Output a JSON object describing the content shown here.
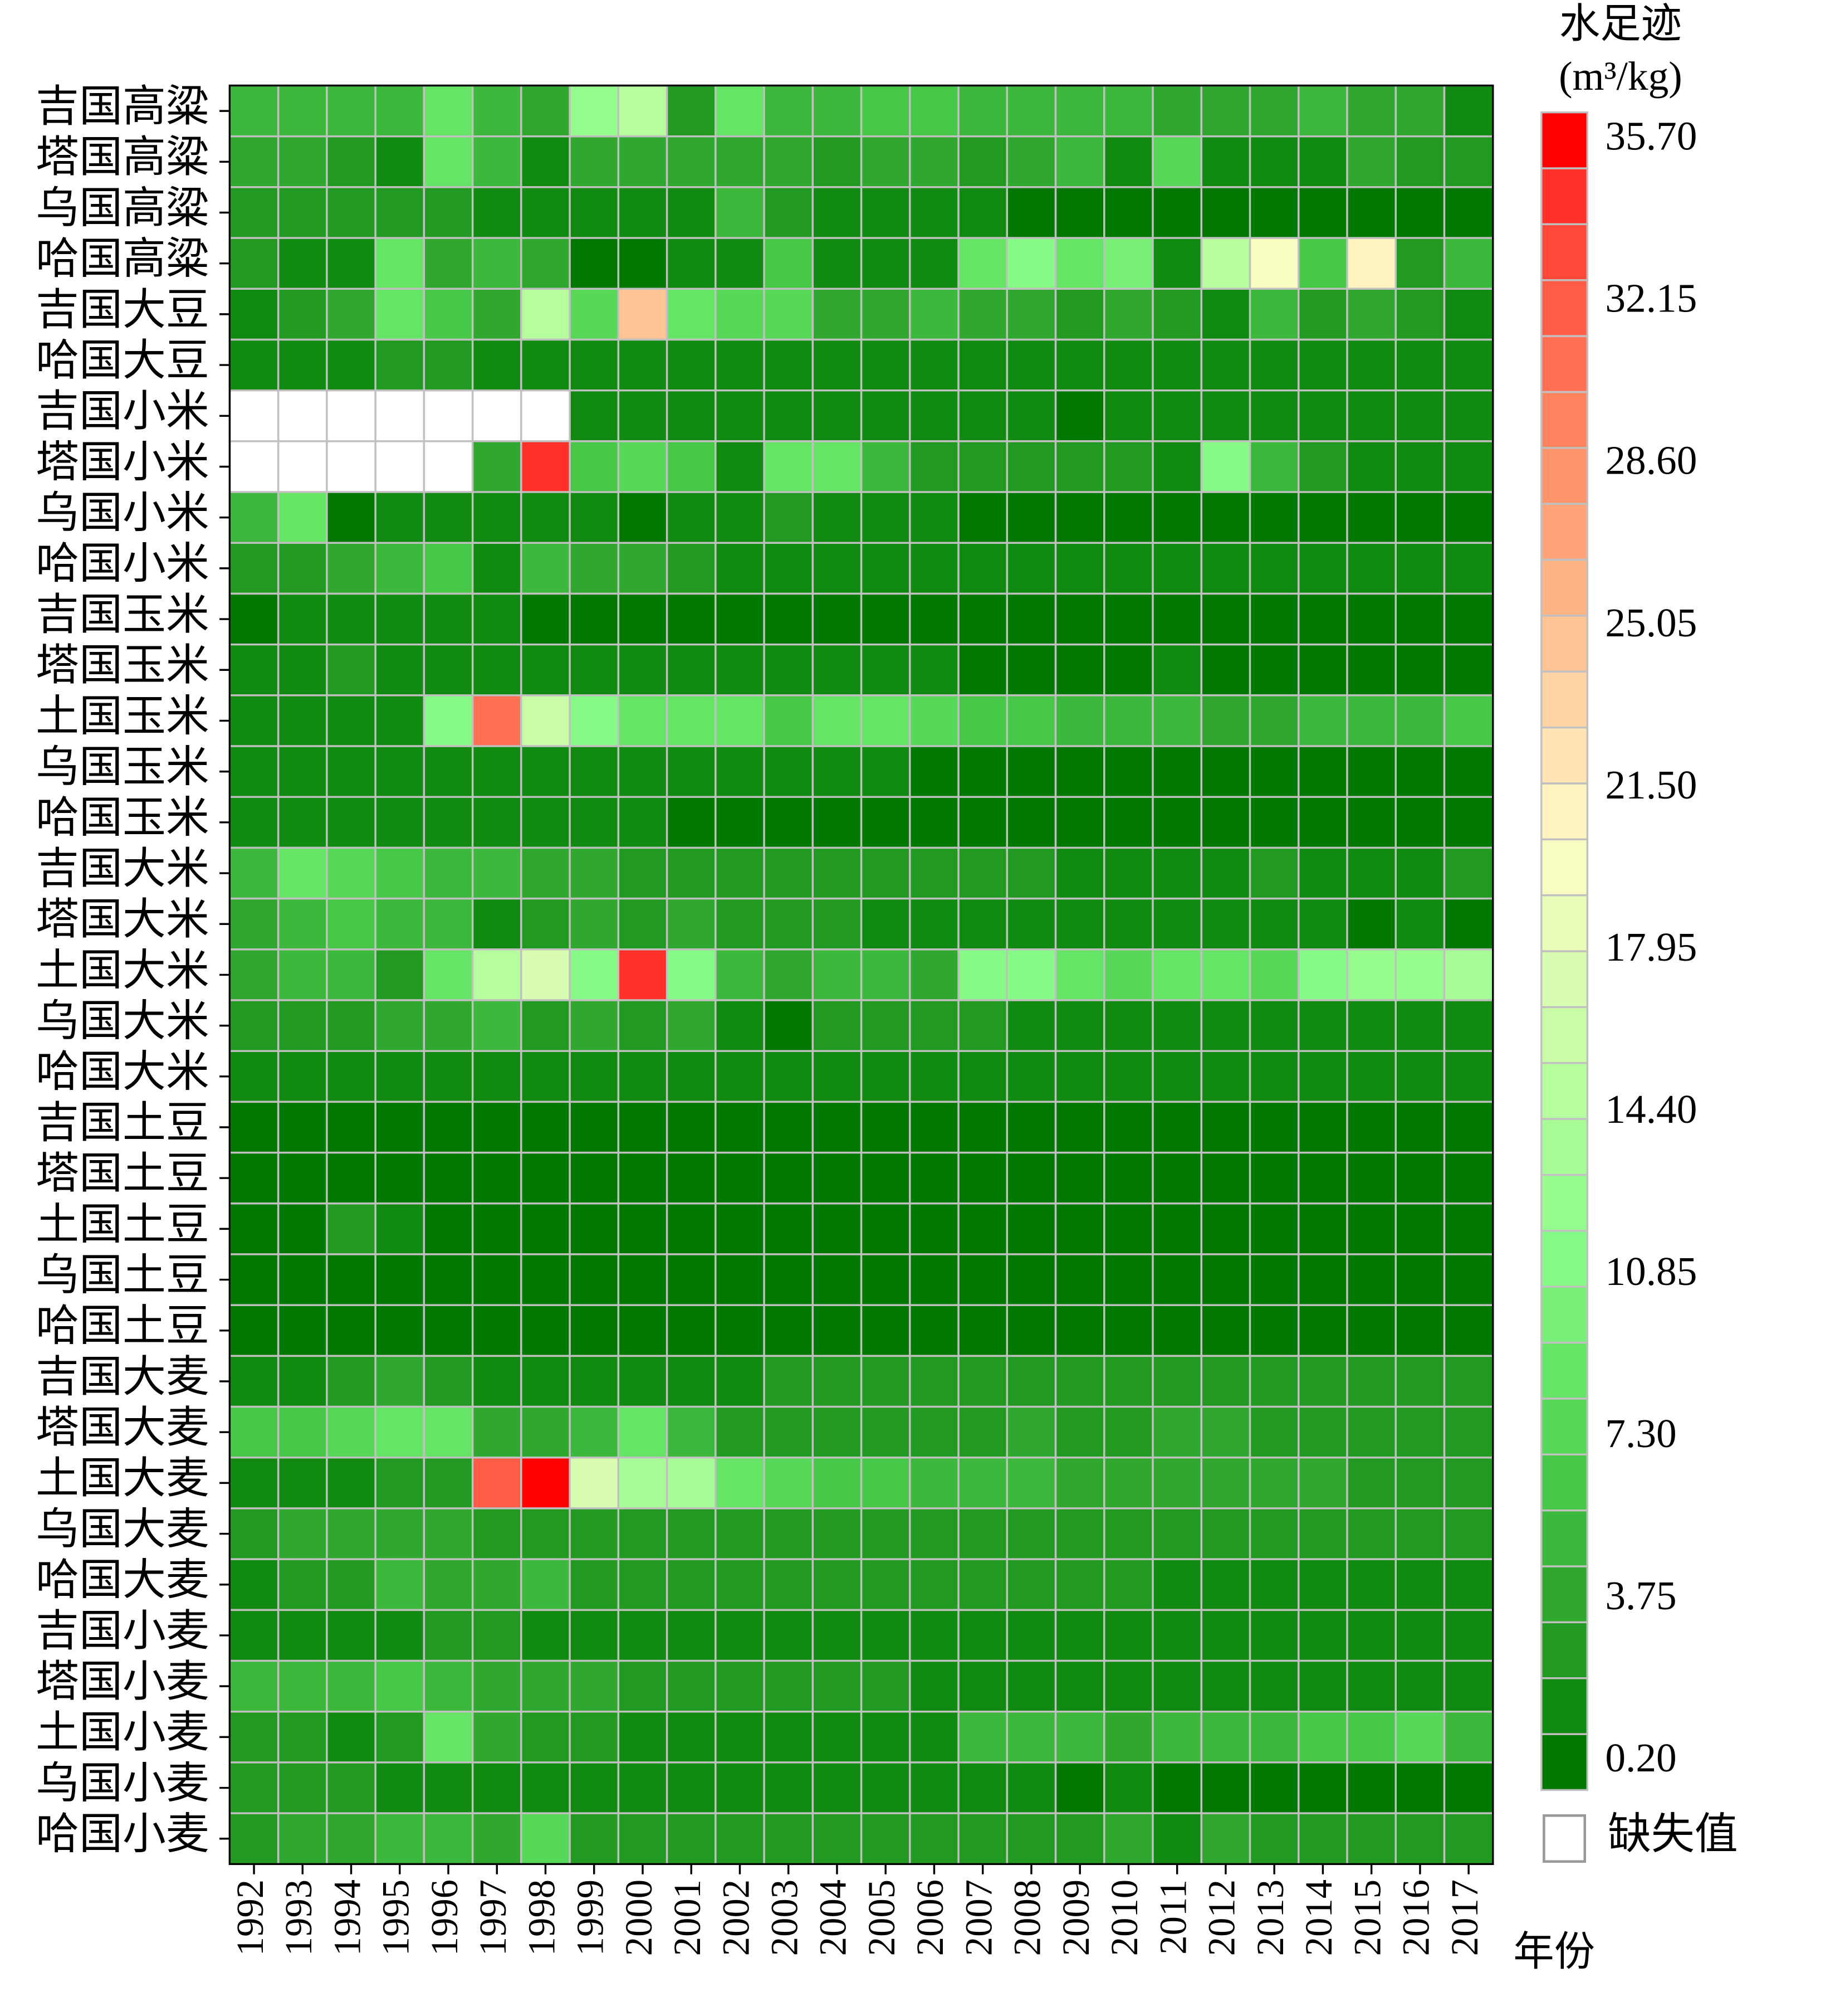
{
  "chart_data": {
    "type": "heatmap",
    "xlabel": "年份",
    "colorbar_title": [
      "水足迹",
      "(m³/kg)"
    ],
    "missing_label": "缺失值",
    "missing_color": "#ffffff",
    "grid_color": "#c0c0c0",
    "x_categories": [
      "1992",
      "1993",
      "1994",
      "1995",
      "1996",
      "1997",
      "1998",
      "1999",
      "2000",
      "2001",
      "2002",
      "2003",
      "2004",
      "2005",
      "2006",
      "2007",
      "2008",
      "2009",
      "2010",
      "2011",
      "2012",
      "2013",
      "2014",
      "2015",
      "2016",
      "2017"
    ],
    "y_categories": [
      "吉国高粱",
      "塔国高粱",
      "乌国高粱",
      "哈国高粱",
      "吉国大豆",
      "哈国大豆",
      "吉国小米",
      "塔国小米",
      "乌国小米",
      "哈国小米",
      "吉国玉米",
      "塔国玉米",
      "土国玉米",
      "乌国玉米",
      "哈国玉米",
      "吉国大米",
      "塔国大米",
      "土国大米",
      "乌国大米",
      "哈国大米",
      "吉国土豆",
      "塔国土豆",
      "土国土豆",
      "乌国土豆",
      "哈国土豆",
      "吉国大麦",
      "塔国大麦",
      "土国大麦",
      "乌国大麦",
      "哈国大麦",
      "吉国小麦",
      "塔国小麦",
      "土国小麦",
      "乌国小麦",
      "哈国小麦"
    ],
    "clim": [
      0.2,
      35.7
    ],
    "cticks": [
      {
        "value": 0.2,
        "label": "0.20"
      },
      3.75,
      {
        "value": 7.3,
        "label": "7.30"
      },
      10.85,
      {
        "value": 14.4,
        "label": "14.40"
      },
      17.95,
      {
        "value": 21.5,
        "label": "21.50"
      },
      25.05,
      {
        "value": 28.6,
        "label": "28.60"
      },
      32.15,
      {
        "value": 35.7,
        "label": "35.70"
      }
    ],
    "colors": [
      "#007800",
      "#108a10",
      "#229a22",
      "#30a830",
      "#3cb83c",
      "#48c848",
      "#58d858",
      "#66e466",
      "#78f078",
      "#86fa86",
      "#96fc8e",
      "#a8fc98",
      "#b8fca0",
      "#c8fca8",
      "#d8fcb0",
      "#e8fcb8",
      "#f8fcc0",
      "#fff4c0",
      "#ffe4b4",
      "#ffd4a4",
      "#ffc494",
      "#ffb484",
      "#ffa478",
      "#ff946c",
      "#ff8460",
      "#ff7054",
      "#ff5c48",
      "#ff483a",
      "#ff302a",
      "#ff0000"
    ],
    "values": [
      [
        5.5,
        5.5,
        5,
        5.5,
        8.5,
        5.5,
        4.5,
        13,
        15.5,
        3.2,
        8.5,
        5.5,
        5.5,
        6.5,
        6.5,
        5.5,
        5.5,
        5.5,
        5,
        4.5,
        4.5,
        4.5,
        5,
        4,
        4.5,
        2
      ],
      [
        4.5,
        3.8,
        3.2,
        2.5,
        8.5,
        5.5,
        2.5,
        4.5,
        3.8,
        3.8,
        4.5,
        3.8,
        3.2,
        4.5,
        3.8,
        3.2,
        4,
        5,
        2.5,
        7.5,
        1.8,
        1.8,
        1.8,
        4.5,
        3,
        3
      ],
      [
        3.2,
        3.2,
        3.2,
        3.2,
        3.5,
        2.5,
        2.2,
        1.5,
        1.5,
        1.8,
        5,
        3.2,
        2.5,
        2.5,
        1.8,
        1.5,
        1.2,
        0.9,
        1.2,
        0.8,
        0.8,
        0.9,
        0.9,
        1,
        0.8,
        0.9
      ],
      [
        3.2,
        2.5,
        2.5,
        8.5,
        4.5,
        6,
        4.5,
        0.9,
        0.9,
        1.8,
        2.5,
        6.5,
        1.8,
        1.5,
        1.8,
        9,
        11,
        9.5,
        10,
        2.5,
        15.5,
        19.5,
        7,
        21,
        3.5,
        6
      ],
      [
        2.5,
        3.2,
        3.8,
        9,
        7,
        4.5,
        15,
        7.5,
        24.5,
        9,
        7.5,
        7.5,
        4,
        3.8,
        5.5,
        4.5,
        4,
        3.5,
        4.5,
        3.5,
        2.5,
        6,
        3.5,
        3.8,
        3.2,
        2.2
      ],
      [
        2.5,
        2.5,
        2.5,
        3,
        3,
        2.5,
        1.8,
        2.5,
        2.5,
        1.8,
        1.8,
        1.8,
        1.8,
        1.8,
        1.8,
        1.8,
        1.5,
        1.5,
        1.8,
        1.5,
        1.8,
        1.8,
        1.5,
        1.5,
        1.5,
        1.5
      ],
      [
        null,
        null,
        null,
        null,
        null,
        null,
        null,
        1.8,
        1.5,
        1.5,
        1.5,
        1.5,
        1.5,
        1.5,
        2.5,
        1.8,
        1.8,
        0.9,
        1.8,
        1.8,
        1.8,
        2.5,
        2.2,
        1.8,
        1.8,
        1.8
      ],
      [
        null,
        null,
        null,
        null,
        null,
        4.5,
        33.5,
        6.5,
        8,
        7,
        2.5,
        8.5,
        8.5,
        5.5,
        3.5,
        3.2,
        3.2,
        3.5,
        3.2,
        2.5,
        11.5,
        5,
        3.2,
        2.2,
        2.2,
        2.2
      ],
      [
        6,
        9.5,
        0.9,
        1.5,
        1.5,
        1.5,
        1.5,
        1.5,
        1.2,
        1.8,
        2.5,
        3.2,
        2.5,
        2.5,
        1.8,
        1.2,
        0.9,
        0.9,
        0.9,
        0.9,
        0.8,
        0.9,
        0.9,
        0.9,
        0.9,
        0.9
      ],
      [
        3.5,
        3.5,
        4.5,
        6,
        7,
        2.5,
        5,
        4.5,
        3.8,
        3.2,
        2.5,
        2,
        2.5,
        2.5,
        2.5,
        2,
        2,
        2.2,
        2.5,
        2,
        2.5,
        1.8,
        2,
        2.2,
        2.2,
        2.2
      ],
      [
        0.8,
        1.5,
        1.5,
        1.5,
        1.5,
        1.5,
        1.2,
        0.9,
        0.9,
        1.2,
        0.9,
        1.2,
        0.9,
        0.9,
        1.2,
        1.2,
        1.2,
        1.2,
        1.2,
        1.2,
        1.2,
        0.9,
        1.2,
        1.2,
        1.2,
        1.2
      ],
      [
        1.5,
        1.5,
        3,
        2.5,
        1.5,
        1.5,
        1.5,
        1.8,
        1.8,
        1.5,
        1.5,
        1.5,
        1.5,
        1.5,
        1.5,
        1.2,
        1.2,
        1.2,
        1.2,
        1.5,
        1.2,
        1.2,
        1.2,
        1.2,
        1.2,
        1.2
      ],
      [
        1.5,
        1.5,
        2.5,
        2.5,
        12,
        30.5,
        16.5,
        12,
        9.5,
        9,
        9.5,
        6.5,
        9.5,
        9.5,
        8,
        6.5,
        6.5,
        6,
        5,
        5,
        4.5,
        4.5,
        5.5,
        5,
        5.5,
        6.5
      ],
      [
        1.5,
        1.5,
        1.5,
        1.5,
        1.8,
        2.5,
        2,
        2.5,
        2.5,
        1.8,
        1.8,
        1.8,
        1.8,
        1.8,
        1.2,
        0.9,
        0.9,
        0.9,
        0.9,
        0.9,
        0.9,
        0.8,
        0.9,
        0.9,
        0.8,
        0.9
      ],
      [
        1.5,
        1.5,
        1.5,
        1.5,
        2.2,
        2.2,
        1.8,
        2,
        2,
        1.2,
        1.2,
        1.2,
        1.2,
        1.2,
        1.2,
        1.2,
        1.2,
        1.2,
        1.2,
        1.2,
        1.2,
        1.2,
        1.2,
        1.2,
        1.2,
        1.2
      ],
      [
        6,
        9.5,
        7.5,
        6.5,
        5.5,
        5,
        4.5,
        4,
        3.5,
        3,
        3.2,
        3,
        3.2,
        3,
        3,
        3,
        3,
        2.5,
        2.5,
        2.5,
        2.5,
        3,
        2.5,
        2.5,
        2.5,
        3
      ],
      [
        4.5,
        5.5,
        6.5,
        5.5,
        5,
        2.5,
        3.5,
        4,
        3.2,
        4,
        3.2,
        3,
        2.8,
        2.5,
        2.5,
        1.8,
        1.5,
        1.5,
        1.5,
        2,
        1.5,
        2.5,
        1.8,
        1.2,
        1.8,
        1.2
      ],
      [
        4.5,
        5,
        5,
        3.2,
        9.5,
        14.5,
        17.5,
        12,
        34,
        11,
        6,
        4.5,
        5,
        5.5,
        4.5,
        12,
        12,
        9,
        8,
        8.5,
        8.5,
        7.5,
        12,
        12.5,
        13,
        13.5
      ],
      [
        3,
        3,
        3.2,
        4.5,
        4.5,
        5,
        3.5,
        4,
        3.5,
        4,
        2.2,
        1.2,
        3.2,
        3.5,
        3,
        3,
        2.5,
        2,
        2.2,
        2.5,
        2.5,
        2,
        1.8,
        2,
        2,
        1.8
      ],
      [
        1.8,
        1.8,
        2.5,
        2.5,
        2.2,
        2.2,
        2.2,
        2.2,
        2.2,
        1.8,
        1.8,
        1.8,
        1.8,
        1.8,
        1.8,
        1.5,
        1.5,
        1.5,
        1.5,
        1.8,
        1.5,
        1.5,
        1.5,
        1.5,
        1.5,
        1.5
      ],
      [
        0.8,
        0.8,
        0.8,
        0.8,
        0.8,
        0.8,
        0.8,
        0.8,
        0.8,
        0.8,
        0.8,
        0.8,
        0.8,
        0.8,
        0.8,
        0.8,
        0.8,
        0.8,
        0.8,
        0.8,
        0.8,
        0.8,
        0.8,
        0.8,
        0.8,
        0.8
      ],
      [
        0.8,
        0.8,
        0.8,
        0.8,
        0.8,
        0.8,
        0.8,
        0.8,
        0.8,
        0.8,
        0.8,
        0.8,
        0.8,
        0.8,
        0.8,
        0.8,
        0.8,
        0.8,
        0.8,
        0.8,
        0.8,
        0.8,
        0.8,
        0.8,
        0.8,
        0.8
      ],
      [
        0.8,
        0.8,
        3.2,
        1.5,
        0.8,
        0.8,
        0.8,
        0.8,
        0.8,
        0.8,
        0.8,
        0.8,
        0.8,
        0.8,
        0.8,
        0.8,
        0.8,
        0.8,
        0.8,
        0.8,
        0.8,
        0.8,
        0.8,
        0.8,
        0.8,
        0.8
      ],
      [
        0.8,
        0.8,
        0.8,
        0.8,
        0.8,
        0.8,
        0.8,
        0.8,
        0.8,
        0.8,
        0.8,
        0.8,
        0.8,
        0.8,
        0.8,
        0.8,
        0.8,
        0.8,
        0.8,
        0.8,
        0.8,
        0.8,
        0.8,
        0.8,
        0.8,
        0.8
      ],
      [
        0.8,
        0.8,
        0.8,
        0.8,
        0.8,
        0.8,
        0.8,
        0.8,
        0.8,
        0.8,
        0.8,
        0.8,
        0.8,
        0.8,
        0.8,
        0.8,
        0.8,
        0.8,
        0.8,
        0.8,
        0.8,
        0.8,
        0.8,
        0.8,
        0.8,
        0.8
      ],
      [
        2.5,
        2.5,
        3.2,
        3.8,
        3,
        2.5,
        2.5,
        2.5,
        2.5,
        2.5,
        2.5,
        2.8,
        2.8,
        2.8,
        2.8,
        2.8,
        3,
        3,
        3,
        3,
        3,
        3.2,
        3,
        3,
        3,
        3
      ],
      [
        6.5,
        6.5,
        7.5,
        8.5,
        8.5,
        4.5,
        4.5,
        5.5,
        9,
        5.5,
        3.5,
        3,
        3.2,
        3.2,
        3.2,
        3.2,
        3.8,
        3.5,
        3.2,
        3.8,
        3.8,
        3.2,
        3.2,
        3.2,
        3,
        3
      ],
      [
        2.5,
        2.2,
        2.5,
        3.2,
        3,
        31,
        35.2,
        17,
        13.5,
        14,
        9,
        7.5,
        7,
        6.5,
        6,
        6,
        6,
        4.5,
        4.5,
        4.2,
        4.5,
        4.2,
        3.8,
        3.5,
        3.2,
        3.5
      ],
      [
        3.5,
        4.5,
        4.5,
        3.8,
        3.8,
        3.5,
        3.5,
        3.2,
        3.2,
        3.2,
        3.5,
        3.5,
        3.5,
        3.5,
        3.2,
        3.2,
        3.2,
        3.2,
        3.2,
        3.2,
        3.2,
        3.2,
        3.2,
        3.2,
        3.2,
        3.2
      ],
      [
        1.8,
        3,
        3.5,
        5,
        3.8,
        3.8,
        5,
        3.2,
        3.2,
        3.2,
        3.2,
        3.2,
        3.2,
        3.2,
        3.2,
        3.2,
        3.2,
        3.2,
        3.2,
        2.5,
        1.8,
        2.5,
        2.5,
        2.5,
        2.5,
        2
      ],
      [
        1.8,
        1.5,
        2.5,
        2.5,
        3,
        3,
        2.5,
        2.5,
        2.2,
        1.8,
        2.5,
        2.5,
        2.5,
        2.5,
        2.5,
        2.5,
        2.5,
        1.8,
        2.5,
        2.5,
        2.2,
        2.2,
        2.2,
        2.2,
        1.8,
        1.8
      ],
      [
        6,
        6,
        6,
        6.5,
        6,
        4,
        4,
        4,
        3.5,
        3.5,
        3.2,
        3,
        3,
        3,
        2.5,
        2.2,
        2.2,
        2.2,
        2.2,
        2.5,
        2.2,
        2.2,
        2.2,
        2.2,
        2,
        2
      ],
      [
        3.2,
        3.2,
        2.5,
        3.2,
        8.5,
        4.5,
        3.2,
        3.2,
        2.5,
        2.5,
        1.8,
        1.8,
        1.5,
        1.8,
        1.5,
        5,
        6,
        5,
        4.5,
        5,
        5,
        5,
        6.5,
        7,
        7.5,
        6
      ],
      [
        3.2,
        3.5,
        3.2,
        2.5,
        2.5,
        2.5,
        1.5,
        1.8,
        1.8,
        1.8,
        1.8,
        1.8,
        1.8,
        1.8,
        1.8,
        1.5,
        1.5,
        0.9,
        1.5,
        1.2,
        0.8,
        0.8,
        0.8,
        0.8,
        0.9,
        1.2
      ],
      [
        3.5,
        4.5,
        4.5,
        5,
        5,
        4,
        7.5,
        3.2,
        3.2,
        3,
        3,
        3,
        3,
        3,
        3,
        3,
        3,
        3,
        4,
        1.8,
        4.5,
        3.5,
        3,
        3,
        3,
        3
      ]
    ]
  }
}
